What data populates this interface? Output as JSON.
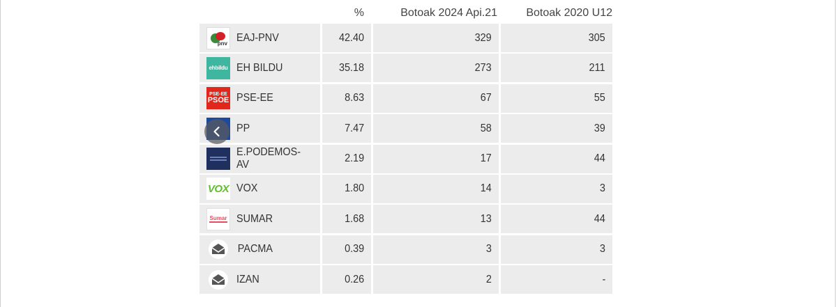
{
  "table": {
    "columns": [
      "",
      "%",
      "Botoak 2024 Api.21",
      "Botoak 2020 U12"
    ],
    "rows": [
      {
        "party": "EAJ-PNV",
        "pct": "42.40",
        "votes_2024": "329",
        "votes_2020": "305",
        "logo": "eaj-pnv-logo"
      },
      {
        "party": "EH BILDU",
        "pct": "35.18",
        "votes_2024": "273",
        "votes_2020": "211",
        "logo": "eh-bildu-logo",
        "logo_text": "ehbildu"
      },
      {
        "party": "PSE-EE",
        "pct": "8.63",
        "votes_2024": "67",
        "votes_2020": "55",
        "logo": "pse-ee-logo",
        "logo_text_1": "PSE-EE",
        "logo_text_2": "PSOE"
      },
      {
        "party": "PP",
        "pct": "7.47",
        "votes_2024": "58",
        "votes_2020": "39",
        "logo": "pp-logo"
      },
      {
        "party": "E.PODEMOS-AV",
        "pct": "2.19",
        "votes_2024": "17",
        "votes_2020": "44",
        "logo": "podemos-logo"
      },
      {
        "party": "VOX",
        "pct": "1.80",
        "votes_2024": "14",
        "votes_2020": "3",
        "logo": "vox-logo",
        "logo_text": "VOX"
      },
      {
        "party": "SUMAR",
        "pct": "1.68",
        "votes_2024": "13",
        "votes_2020": "44",
        "logo": "sumar-logo",
        "logo_text": "Sumar"
      },
      {
        "party": "PACMA",
        "pct": "0.39",
        "votes_2024": "3",
        "votes_2020": "3",
        "logo": "envelope-icon"
      },
      {
        "party": "IZAN",
        "pct": "0.26",
        "votes_2024": "2",
        "votes_2020": "-",
        "logo": "envelope-icon"
      }
    ]
  },
  "carousel": {
    "prev_icon": "chevron-left-icon"
  },
  "colors": {
    "cell_background": "#ececec",
    "pnv_green": "#3a8a3a",
    "pnv_red": "#d32027",
    "bildu_teal": "#3fb6a0",
    "psoe_red": "#e1261c",
    "pp_blue": "#1d4a9c",
    "podemos_navy": "#1f2f5e",
    "vox_green": "#5fbf2b",
    "sumar_pink": "#e84a5f"
  }
}
